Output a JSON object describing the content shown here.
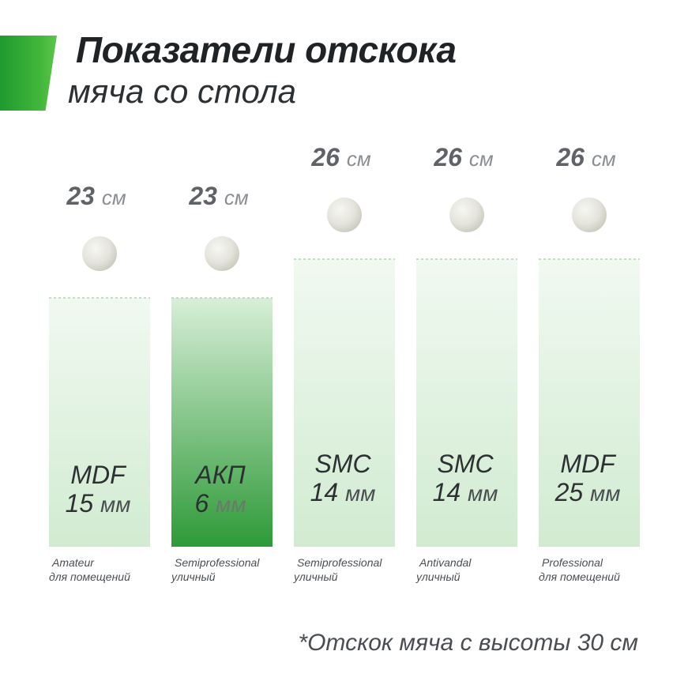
{
  "header": {
    "title_line1": "Показатели отскока",
    "title_line2": "мяча со стола"
  },
  "footnote": "*Отскок мяча с высоты 30 см",
  "colors": {
    "accent": "#2ea836",
    "bar_light_top": "#f1f9f1",
    "bar_light_bottom": "#d1ebd1",
    "bar_dark_top": "#d8efd8",
    "bar_dark_bottom": "#2e9a38",
    "ball": "#e4e4dc",
    "text_dark": "#2c3033",
    "text_grey": "#74787c"
  },
  "chart_data": {
    "type": "bar",
    "unit": "см",
    "categories": [
      "MDF 15 мм",
      "АКП 6 мм",
      "SMC 14 мм",
      "SMC 14 мм",
      "MDF 25 мм"
    ],
    "values": [
      23,
      23,
      26,
      26,
      26
    ],
    "ylim": [
      0,
      30
    ],
    "bars": [
      {
        "material": "MDF",
        "thickness": "15",
        "unit": "мм",
        "value_text": "23",
        "value_unit": "см",
        "class": "Amateur",
        "usage": "для помещений",
        "highlight": false
      },
      {
        "material": "АКП",
        "thickness": "6",
        "unit": "мм",
        "value_text": "23",
        "value_unit": "см",
        "class": "Semiprofessional",
        "usage": "уличный",
        "highlight": true
      },
      {
        "material": "SMC",
        "thickness": "14",
        "unit": "мм",
        "value_text": "26",
        "value_unit": "см",
        "class": "Semiprofessional",
        "usage": "уличный",
        "highlight": false
      },
      {
        "material": "SMC",
        "thickness": "14",
        "unit": "мм",
        "value_text": "26",
        "value_unit": "см",
        "class": "Antivandal",
        "usage": "уличный",
        "highlight": false
      },
      {
        "material": "MDF",
        "thickness": "25",
        "unit": "мм",
        "value_text": "26",
        "value_unit": "см",
        "class": "Professional",
        "usage": "для помещений",
        "highlight": false
      }
    ]
  }
}
